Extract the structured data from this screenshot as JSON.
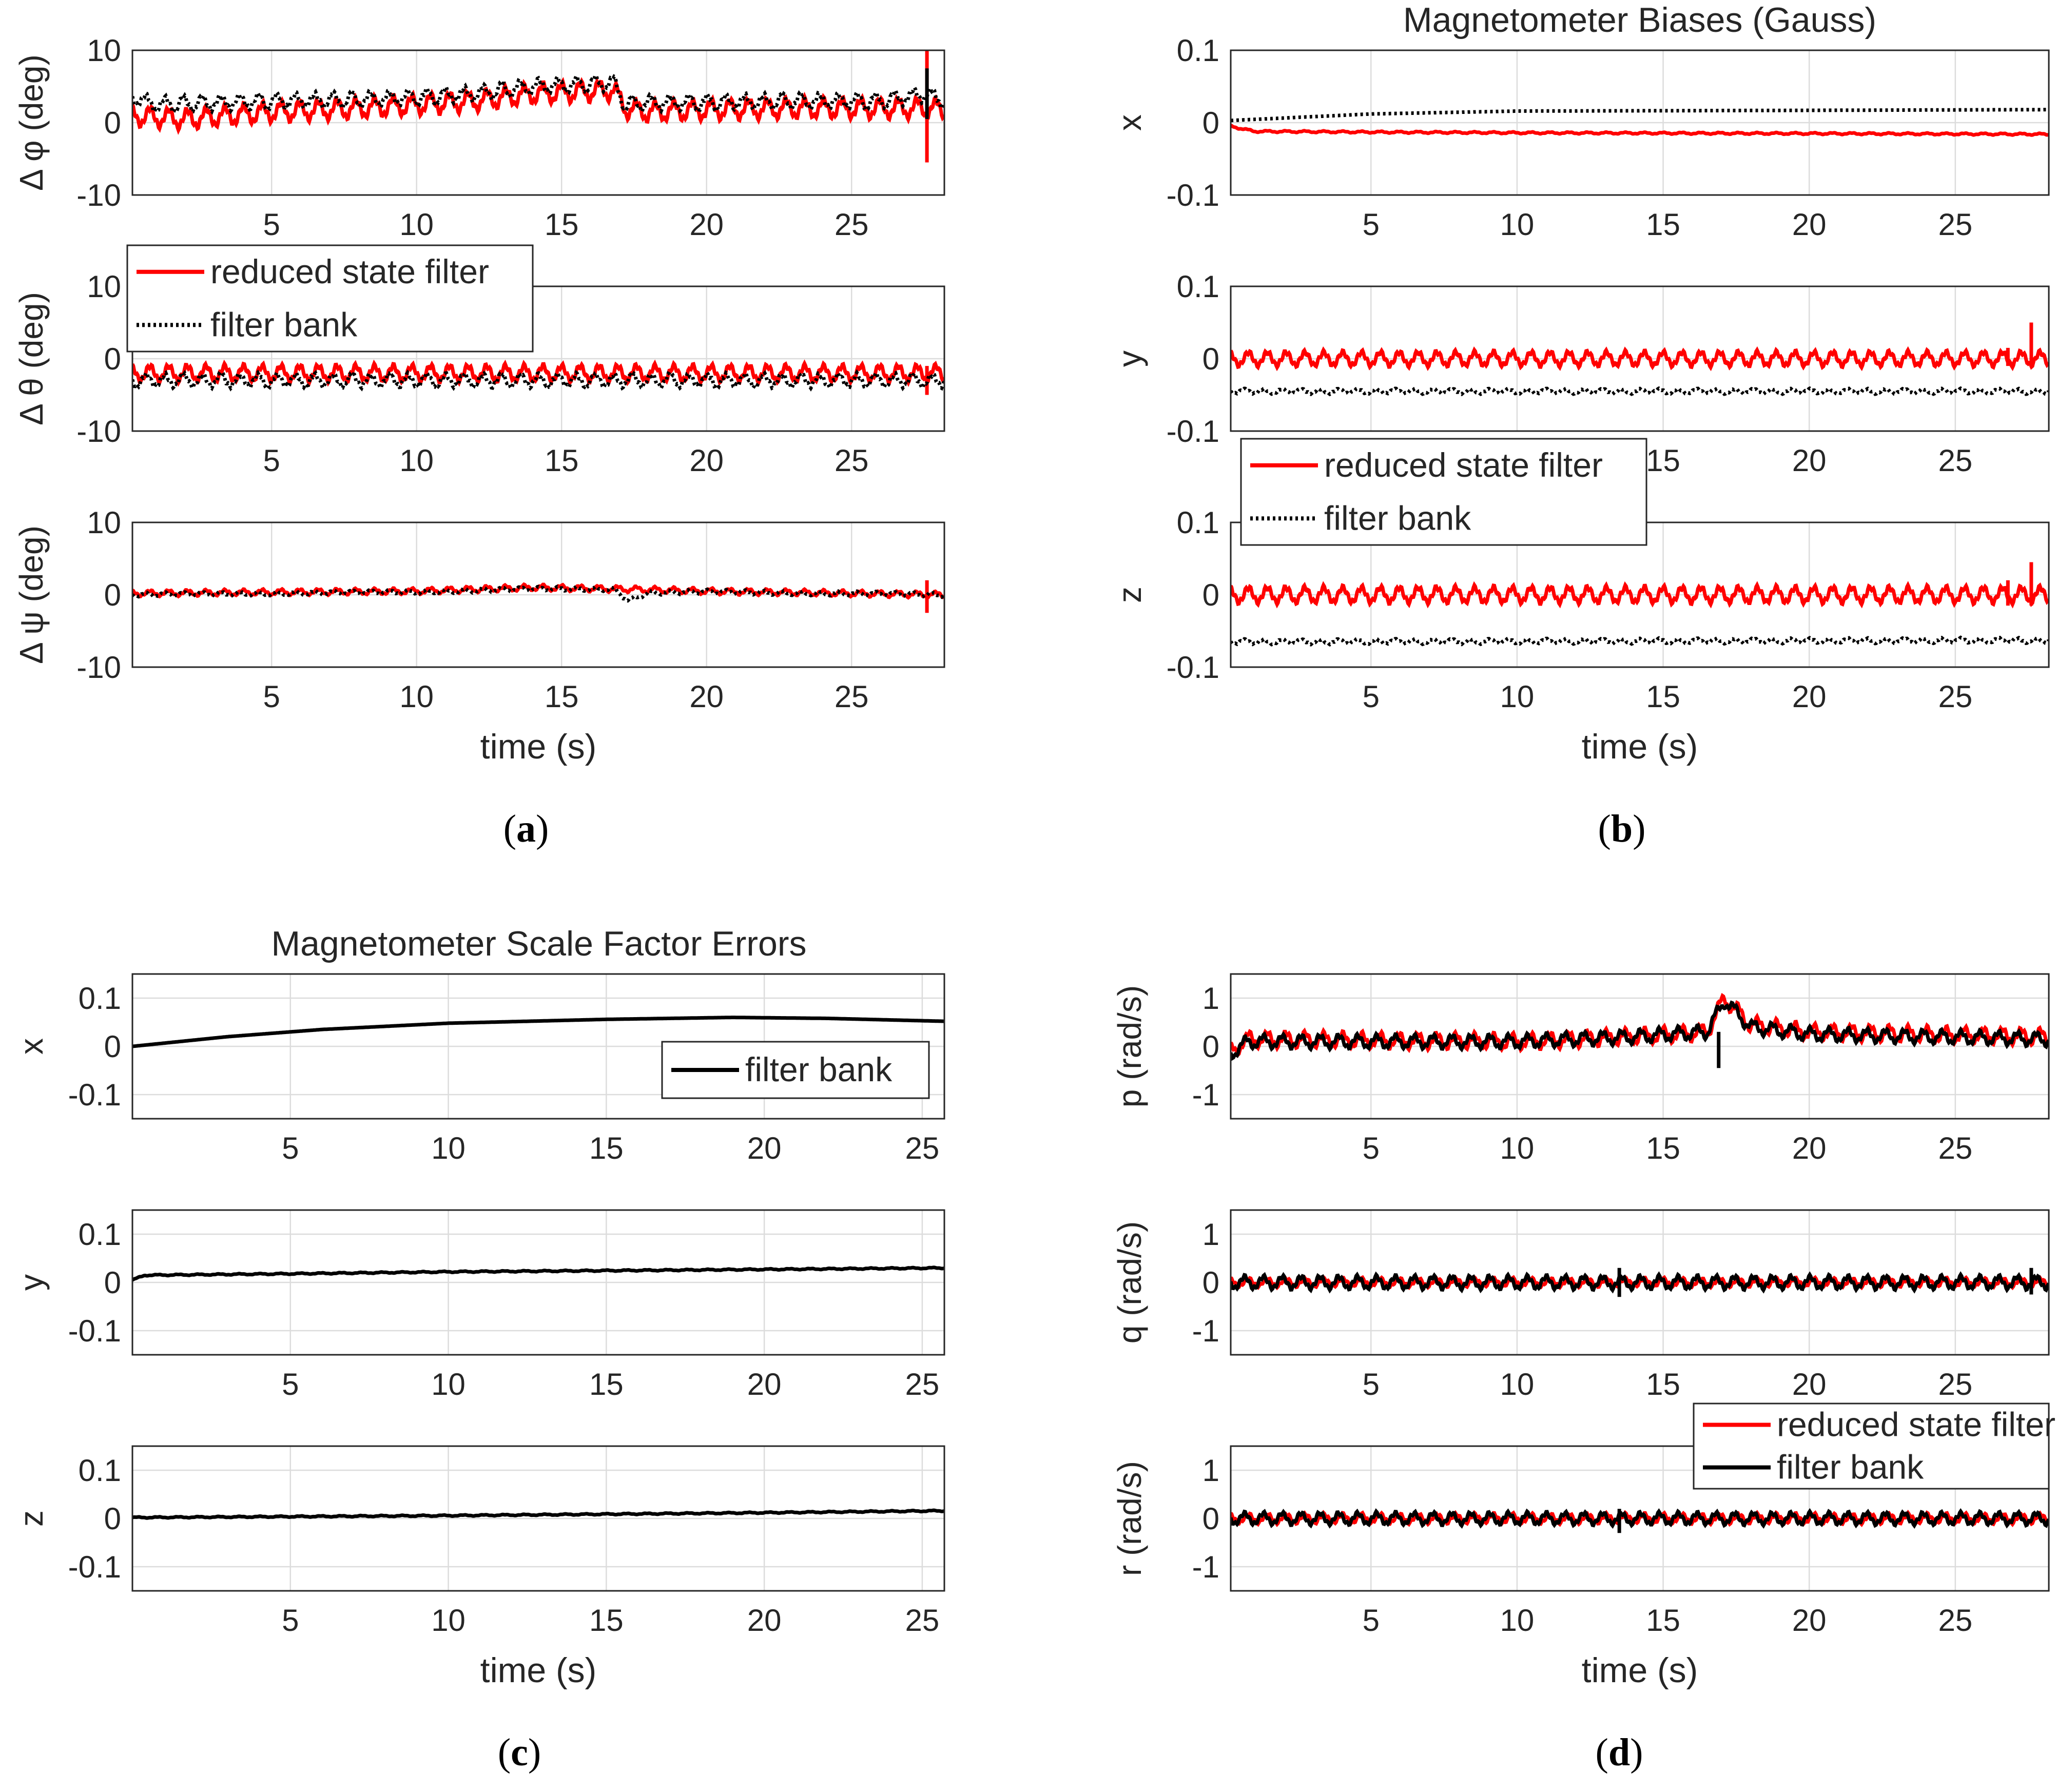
{
  "colors": {
    "reduced": "#ff0000",
    "bank": "#000000"
  },
  "chart_data": [
    {
      "type": "line",
      "caption": "a",
      "title": "",
      "xlabel": "time (s)",
      "xticks": [
        5,
        10,
        15,
        20,
        25
      ],
      "xlim": [
        0.2,
        28.2
      ],
      "legend": {
        "entries": [
          "reduced state filter",
          "filter bank"
        ],
        "placement": "panel-2-top-left"
      },
      "subplots": [
        {
          "ylabel": "Δ φ (deg)",
          "ylim": [
            -10,
            10
          ],
          "yticks": [
            10,
            0,
            -10
          ],
          "series": [
            {
              "name": "reduced state filter",
              "style": "solid",
              "points": [
                [
                  0.2,
                  1.0
                ],
                [
                  2,
                  0.5
                ],
                [
                  5,
                  1.5
                ],
                [
                  8,
                  2.0
                ],
                [
                  10,
                  2.5
                ],
                [
                  12,
                  3.0
                ],
                [
                  14,
                  4.0
                ],
                [
                  16.8,
                  4.5
                ],
                [
                  17.2,
                  2.0
                ],
                [
                  18,
                  1.5
                ],
                [
                  20,
                  1.8
                ],
                [
                  23,
                  2.0
                ],
                [
                  26,
                  2.0
                ],
                [
                  27.6,
                  2.0
                ],
                [
                  28.2,
                  1.8
                ]
              ],
              "ripple": 1.2,
              "spikes": [
                [
                  27.6,
                  -5.5,
                  10.5
                ]
              ]
            },
            {
              "name": "filter bank",
              "style": "dotted",
              "points": [
                [
                  0.2,
                  3.5
                ],
                [
                  1,
                  2.5
                ],
                [
                  5,
                  3.0
                ],
                [
                  8,
                  3.2
                ],
                [
                  10,
                  3.5
                ],
                [
                  12,
                  4.0
                ],
                [
                  14,
                  5.0
                ],
                [
                  16.8,
                  5.5
                ],
                [
                  17.2,
                  2.5
                ],
                [
                  18,
                  2.8
                ],
                [
                  20,
                  2.8
                ],
                [
                  23,
                  3.0
                ],
                [
                  26,
                  3.0
                ],
                [
                  27.6,
                  4.0
                ],
                [
                  28.2,
                  3.0
                ]
              ],
              "ripple": 0.9,
              "spikes": [
                [
                  27.6,
                  0.5,
                  7.5
                ]
              ]
            }
          ]
        },
        {
          "ylabel": "Δ θ (deg)",
          "ylim": [
            -10,
            10
          ],
          "yticks": [
            10,
            0,
            -10
          ],
          "series": [
            {
              "name": "reduced state filter",
              "style": "solid",
              "points": [
                [
                  0.2,
                  -2.0
                ],
                [
                  28.2,
                  -2.0
                ]
              ],
              "ripple": 1.0,
              "spikes": [
                [
                  27.6,
                  -5.0,
                  -1.0
                ]
              ]
            },
            {
              "name": "filter bank",
              "style": "dotted",
              "points": [
                [
                  0.2,
                  -3.0
                ],
                [
                  28.2,
                  -3.0
                ]
              ],
              "ripple": 0.8,
              "spikes": []
            }
          ]
        },
        {
          "ylabel": "Δ ψ (deg)",
          "ylim": [
            -10,
            10
          ],
          "yticks": [
            10,
            0,
            -10
          ],
          "series": [
            {
              "name": "reduced state filter",
              "style": "solid",
              "points": [
                [
                  0.2,
                  0.2
                ],
                [
                  10,
                  0.5
                ],
                [
                  14,
                  1.0
                ],
                [
                  17,
                  0.8
                ],
                [
                  20,
                  0.5
                ],
                [
                  28.2,
                  0.0
                ]
              ],
              "ripple": 0.35,
              "spikes": [
                [
                  27.6,
                  -2.5,
                  2.0
                ]
              ]
            },
            {
              "name": "filter bank",
              "style": "dotted",
              "points": [
                [
                  0.2,
                  0.0
                ],
                [
                  10,
                  0.4
                ],
                [
                  14,
                  0.8
                ],
                [
                  16.8,
                  0.8
                ],
                [
                  17.3,
                  -0.8
                ],
                [
                  18,
                  0.3
                ],
                [
                  20,
                  0.4
                ],
                [
                  28.2,
                  0.0
                ]
              ],
              "ripple": 0.25,
              "spikes": []
            }
          ]
        }
      ]
    },
    {
      "type": "line",
      "caption": "b",
      "title": "Magnetometer Biases (Gauss)",
      "xlabel": "time (s)",
      "xticks": [
        5,
        10,
        15,
        20,
        25
      ],
      "xlim": [
        0.2,
        28.2
      ],
      "legend": {
        "entries": [
          "reduced state filter",
          "filter bank"
        ],
        "placement": "panel-3-top-left"
      },
      "subplots": [
        {
          "ylabel": "x",
          "ylim": [
            -0.1,
            0.1
          ],
          "yticks": [
            0.1,
            0,
            -0.1
          ],
          "series": [
            {
              "name": "reduced state filter",
              "style": "solid",
              "points": [
                [
                  0.2,
                  -0.005
                ],
                [
                  1,
                  -0.012
                ],
                [
                  5,
                  -0.013
                ],
                [
                  10,
                  -0.014
                ],
                [
                  20,
                  -0.015
                ],
                [
                  28.2,
                  -0.016
                ]
              ],
              "ripple": 0.001,
              "spikes": []
            },
            {
              "name": "filter bank",
              "style": "dotted",
              "points": [
                [
                  0.2,
                  0.003
                ],
                [
                  5,
                  0.012
                ],
                [
                  10,
                  0.016
                ],
                [
                  20,
                  0.017
                ],
                [
                  28.2,
                  0.018
                ]
              ],
              "ripple": 0.0,
              "spikes": []
            }
          ]
        },
        {
          "ylabel": "y",
          "ylim": [
            -0.1,
            0.1
          ],
          "yticks": [
            0.1,
            0,
            -0.1
          ],
          "series": [
            {
              "name": "reduced state filter",
              "style": "solid",
              "points": [
                [
                  0.2,
                  0.0
                ],
                [
                  28.2,
                  0.0
                ]
              ],
              "ripple": 0.009,
              "spikes": [
                [
                  26.8,
                  -0.01,
                  0.015
                ],
                [
                  27.6,
                  -0.01,
                  0.05
                ]
              ]
            },
            {
              "name": "filter bank",
              "style": "dotted",
              "points": [
                [
                  0.2,
                  -0.045
                ],
                [
                  28.2,
                  -0.045
                ]
              ],
              "ripple": 0.003,
              "spikes": []
            }
          ]
        },
        {
          "ylabel": "z",
          "ylim": [
            -0.1,
            0.1
          ],
          "yticks": [
            0.1,
            0,
            -0.1
          ],
          "series": [
            {
              "name": "reduced state filter",
              "style": "solid",
              "points": [
                [
                  0.2,
                  0.0
                ],
                [
                  28.2,
                  0.0
                ]
              ],
              "ripple": 0.01,
              "spikes": [
                [
                  26.8,
                  -0.015,
                  0.02
                ],
                [
                  27.6,
                  -0.015,
                  0.045
                ]
              ]
            },
            {
              "name": "filter bank",
              "style": "dotted",
              "points": [
                [
                  0.2,
                  -0.065
                ],
                [
                  28.2,
                  -0.063
                ]
              ],
              "ripple": 0.003,
              "spikes": []
            }
          ]
        }
      ]
    },
    {
      "type": "line",
      "caption": "c",
      "title": "Magnetometer Scale Factor Errors",
      "xlabel": "time (s)",
      "xticks": [
        5,
        10,
        15,
        20,
        25
      ],
      "xlim": [
        0,
        25.7
      ],
      "legend": {
        "entries": [
          "filter bank"
        ],
        "placement": "panel-1-bottom-right"
      },
      "subplots": [
        {
          "ylabel": "x",
          "ylim": [
            -0.15,
            0.15
          ],
          "yticks": [
            0.1,
            0,
            -0.1
          ],
          "series": [
            {
              "name": "filter bank",
              "style": "solid",
              "points": [
                [
                  0,
                  0.0
                ],
                [
                  3,
                  0.02
                ],
                [
                  6,
                  0.035
                ],
                [
                  10,
                  0.048
                ],
                [
                  15,
                  0.056
                ],
                [
                  19,
                  0.06
                ],
                [
                  22,
                  0.058
                ],
                [
                  25.7,
                  0.052
                ]
              ],
              "ripple": 0.0,
              "spikes": []
            }
          ]
        },
        {
          "ylabel": "y",
          "ylim": [
            -0.15,
            0.15
          ],
          "yticks": [
            0.1,
            0,
            -0.1
          ],
          "series": [
            {
              "name": "filter bank",
              "style": "solid",
              "points": [
                [
                  0,
                  0.005
                ],
                [
                  0.4,
                  0.015
                ],
                [
                  5,
                  0.018
                ],
                [
                  10,
                  0.022
                ],
                [
                  20,
                  0.027
                ],
                [
                  25.7,
                  0.03
                ]
              ],
              "ripple": 0.001,
              "spikes": []
            }
          ]
        },
        {
          "ylabel": "z",
          "ylim": [
            -0.15,
            0.15
          ],
          "yticks": [
            0.1,
            0,
            -0.1
          ],
          "series": [
            {
              "name": "filter bank",
              "style": "solid",
              "points": [
                [
                  0,
                  0.002
                ],
                [
                  10,
                  0.006
                ],
                [
                  20,
                  0.012
                ],
                [
                  25.7,
                  0.016
                ]
              ],
              "ripple": 0.001,
              "spikes": []
            }
          ]
        }
      ]
    },
    {
      "type": "line",
      "caption": "d",
      "title": "",
      "xlabel": "time (s)",
      "xticks": [
        5,
        10,
        15,
        20,
        25
      ],
      "xlim": [
        0.2,
        28.2
      ],
      "legend": {
        "entries": [
          "reduced state filter",
          "filter bank"
        ],
        "placement": "panel-3-top-right"
      },
      "subplots": [
        {
          "ylabel": "p (rad/s)",
          "ylim": [
            -1.5,
            1.5
          ],
          "yticks": [
            1,
            0,
            -1
          ],
          "series": [
            {
              "name": "reduced state filter",
              "style": "solid",
              "points": [
                [
                  0.2,
                  -0.1
                ],
                [
                  0.8,
                  0.15
                ],
                [
                  10,
                  0.1
                ],
                [
                  14,
                  0.2
                ],
                [
                  16.5,
                  0.3
                ],
                [
                  17.1,
                  1.0
                ],
                [
                  18,
                  0.45
                ],
                [
                  20,
                  0.3
                ],
                [
                  28.2,
                  0.2
                ]
              ],
              "ripple": 0.14,
              "spikes": []
            },
            {
              "name": "filter bank",
              "style": "solid",
              "points": [
                [
                  0.2,
                  -0.15
                ],
                [
                  0.8,
                  0.1
                ],
                [
                  10,
                  0.1
                ],
                [
                  14,
                  0.2
                ],
                [
                  16.5,
                  0.3
                ],
                [
                  17.1,
                  0.95
                ],
                [
                  18,
                  0.4
                ],
                [
                  20,
                  0.25
                ],
                [
                  28.2,
                  0.15
                ]
              ],
              "ripple": 0.12,
              "spikes": [
                [
                  16.9,
                  -0.45,
                  0.3
                ]
              ]
            }
          ]
        },
        {
          "ylabel": "q (rad/s)",
          "ylim": [
            -1.5,
            1.5
          ],
          "yticks": [
            1,
            0,
            -1
          ],
          "series": [
            {
              "name": "reduced state filter",
              "style": "solid",
              "points": [
                [
                  0.2,
                  0.0
                ],
                [
                  28.2,
                  0.0
                ]
              ],
              "ripple": 0.08,
              "spikes": []
            },
            {
              "name": "filter bank",
              "style": "solid",
              "points": [
                [
                  0.2,
                  0.0
                ],
                [
                  28.2,
                  0.0
                ]
              ],
              "ripple": 0.12,
              "spikes": [
                [
                  13.5,
                  -0.3,
                  0.3
                ],
                [
                  27.6,
                  -0.25,
                  0.3
                ]
              ]
            }
          ]
        },
        {
          "ylabel": "r (rad/s)",
          "ylim": [
            -1.5,
            1.5
          ],
          "yticks": [
            1,
            0,
            -1
          ],
          "series": [
            {
              "name": "reduced state filter",
              "style": "solid",
              "points": [
                [
                  0.2,
                  0.0
                ],
                [
                  28.2,
                  0.0
                ]
              ],
              "ripple": 0.09,
              "spikes": []
            },
            {
              "name": "filter bank",
              "style": "solid",
              "points": [
                [
                  0.2,
                  0.0
                ],
                [
                  28.2,
                  0.0
                ]
              ],
              "ripple": 0.11,
              "spikes": [
                [
                  13.5,
                  -0.3,
                  0.2
                ]
              ]
            }
          ]
        }
      ]
    }
  ]
}
